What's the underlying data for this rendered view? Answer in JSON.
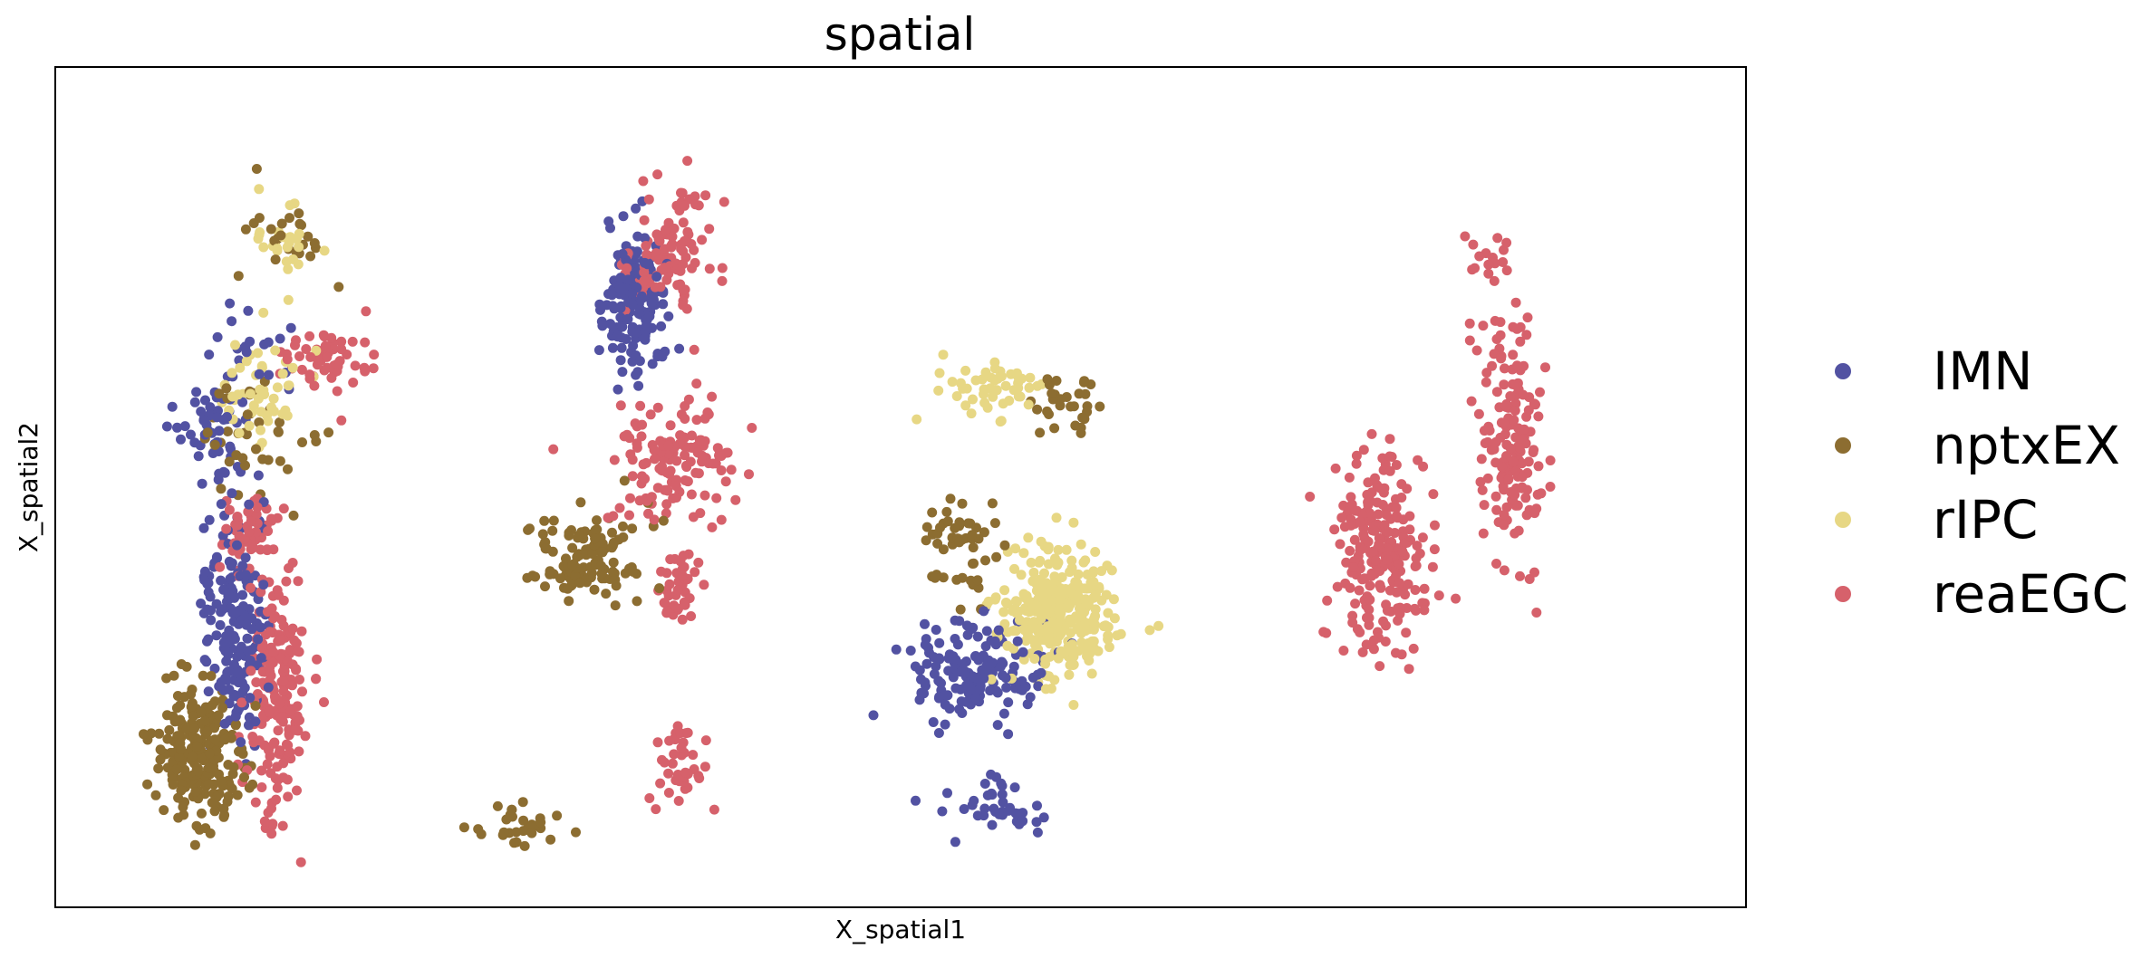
{
  "chart_data": {
    "type": "scatter",
    "title": "spatial",
    "xlabel": "X_spatial1",
    "ylabel": "X_spatial2",
    "xlim": [
      0,
      100
    ],
    "ylim": [
      0,
      100
    ],
    "grid": false,
    "ticks": false,
    "legend_position": "right",
    "series": [
      {
        "name": "IMN",
        "color": "#5252a2"
      },
      {
        "name": "nptxEX",
        "color": "#8c6d31"
      },
      {
        "name": "rIPC",
        "color": "#e7d784"
      },
      {
        "name": "reaEGC",
        "color": "#d6616b"
      }
    ],
    "clusters": [
      {
        "series": "nptxEX",
        "n": 230,
        "cx": 8.6,
        "cy": 18,
        "sx": 1.3,
        "sy": 9
      },
      {
        "series": "nptxEX",
        "n": 40,
        "cx": 11.5,
        "cy": 56,
        "sx": 1.5,
        "sy": 8
      },
      {
        "series": "nptxEX",
        "n": 25,
        "cx": 13.3,
        "cy": 80,
        "sx": 1.6,
        "sy": 6
      },
      {
        "series": "IMN",
        "n": 180,
        "cx": 10.6,
        "cy": 34,
        "sx": 0.9,
        "sy": 17
      },
      {
        "series": "IMN",
        "n": 50,
        "cx": 9.2,
        "cy": 57,
        "sx": 0.9,
        "sy": 6
      },
      {
        "series": "IMN",
        "n": 20,
        "cx": 12.0,
        "cy": 66,
        "sx": 1.2,
        "sy": 5
      },
      {
        "series": "rIPC",
        "n": 50,
        "cx": 12.3,
        "cy": 62,
        "sx": 1.4,
        "sy": 8
      },
      {
        "series": "rIPC",
        "n": 25,
        "cx": 13.6,
        "cy": 78,
        "sx": 1.0,
        "sy": 6
      },
      {
        "series": "reaEGC",
        "n": 200,
        "cx": 13.0,
        "cy": 25,
        "sx": 0.9,
        "sy": 15
      },
      {
        "series": "reaEGC",
        "n": 50,
        "cx": 11.6,
        "cy": 45,
        "sx": 0.9,
        "sy": 5
      },
      {
        "series": "reaEGC",
        "n": 55,
        "cx": 16.2,
        "cy": 65,
        "sx": 1.3,
        "sy": 5
      },
      {
        "series": "IMN",
        "n": 150,
        "cx": 34.0,
        "cy": 72,
        "sx": 1.1,
        "sy": 10
      },
      {
        "series": "nptxEX",
        "n": 120,
        "cx": 31.5,
        "cy": 42,
        "sx": 1.8,
        "sy": 6
      },
      {
        "series": "nptxEX",
        "n": 30,
        "cx": 27.2,
        "cy": 10,
        "sx": 1.3,
        "sy": 3
      },
      {
        "series": "reaEGC",
        "n": 100,
        "cx": 36.4,
        "cy": 78,
        "sx": 1.3,
        "sy": 8
      },
      {
        "series": "reaEGC",
        "n": 130,
        "cx": 36.6,
        "cy": 53,
        "sx": 2.0,
        "sy": 9
      },
      {
        "series": "reaEGC",
        "n": 40,
        "cx": 36.8,
        "cy": 38,
        "sx": 0.5,
        "sy": 5
      },
      {
        "series": "reaEGC",
        "n": 40,
        "cx": 36.9,
        "cy": 17,
        "sx": 0.8,
        "sy": 6
      },
      {
        "series": "rIPC",
        "n": 50,
        "cx": 55.5,
        "cy": 62,
        "sx": 1.8,
        "sy": 4
      },
      {
        "series": "rIPC",
        "n": 300,
        "cx": 59.2,
        "cy": 35,
        "sx": 1.8,
        "sy": 8
      },
      {
        "series": "IMN",
        "n": 160,
        "cx": 54.5,
        "cy": 28,
        "sx": 2.0,
        "sy": 7
      },
      {
        "series": "IMN",
        "n": 40,
        "cx": 55.5,
        "cy": 12,
        "sx": 1.5,
        "sy": 4
      },
      {
        "series": "nptxEX",
        "n": 50,
        "cx": 53.6,
        "cy": 43,
        "sx": 1.4,
        "sy": 6
      },
      {
        "series": "nptxEX",
        "n": 30,
        "cx": 59.8,
        "cy": 60,
        "sx": 1.3,
        "sy": 4
      },
      {
        "series": "reaEGC",
        "n": 220,
        "cx": 78.3,
        "cy": 42,
        "sx": 1.4,
        "sy": 14
      },
      {
        "series": "reaEGC",
        "n": 160,
        "cx": 86.2,
        "cy": 56,
        "sx": 0.9,
        "sy": 17
      },
      {
        "series": "reaEGC",
        "n": 15,
        "cx": 84.9,
        "cy": 78,
        "sx": 0.7,
        "sy": 4
      }
    ]
  }
}
